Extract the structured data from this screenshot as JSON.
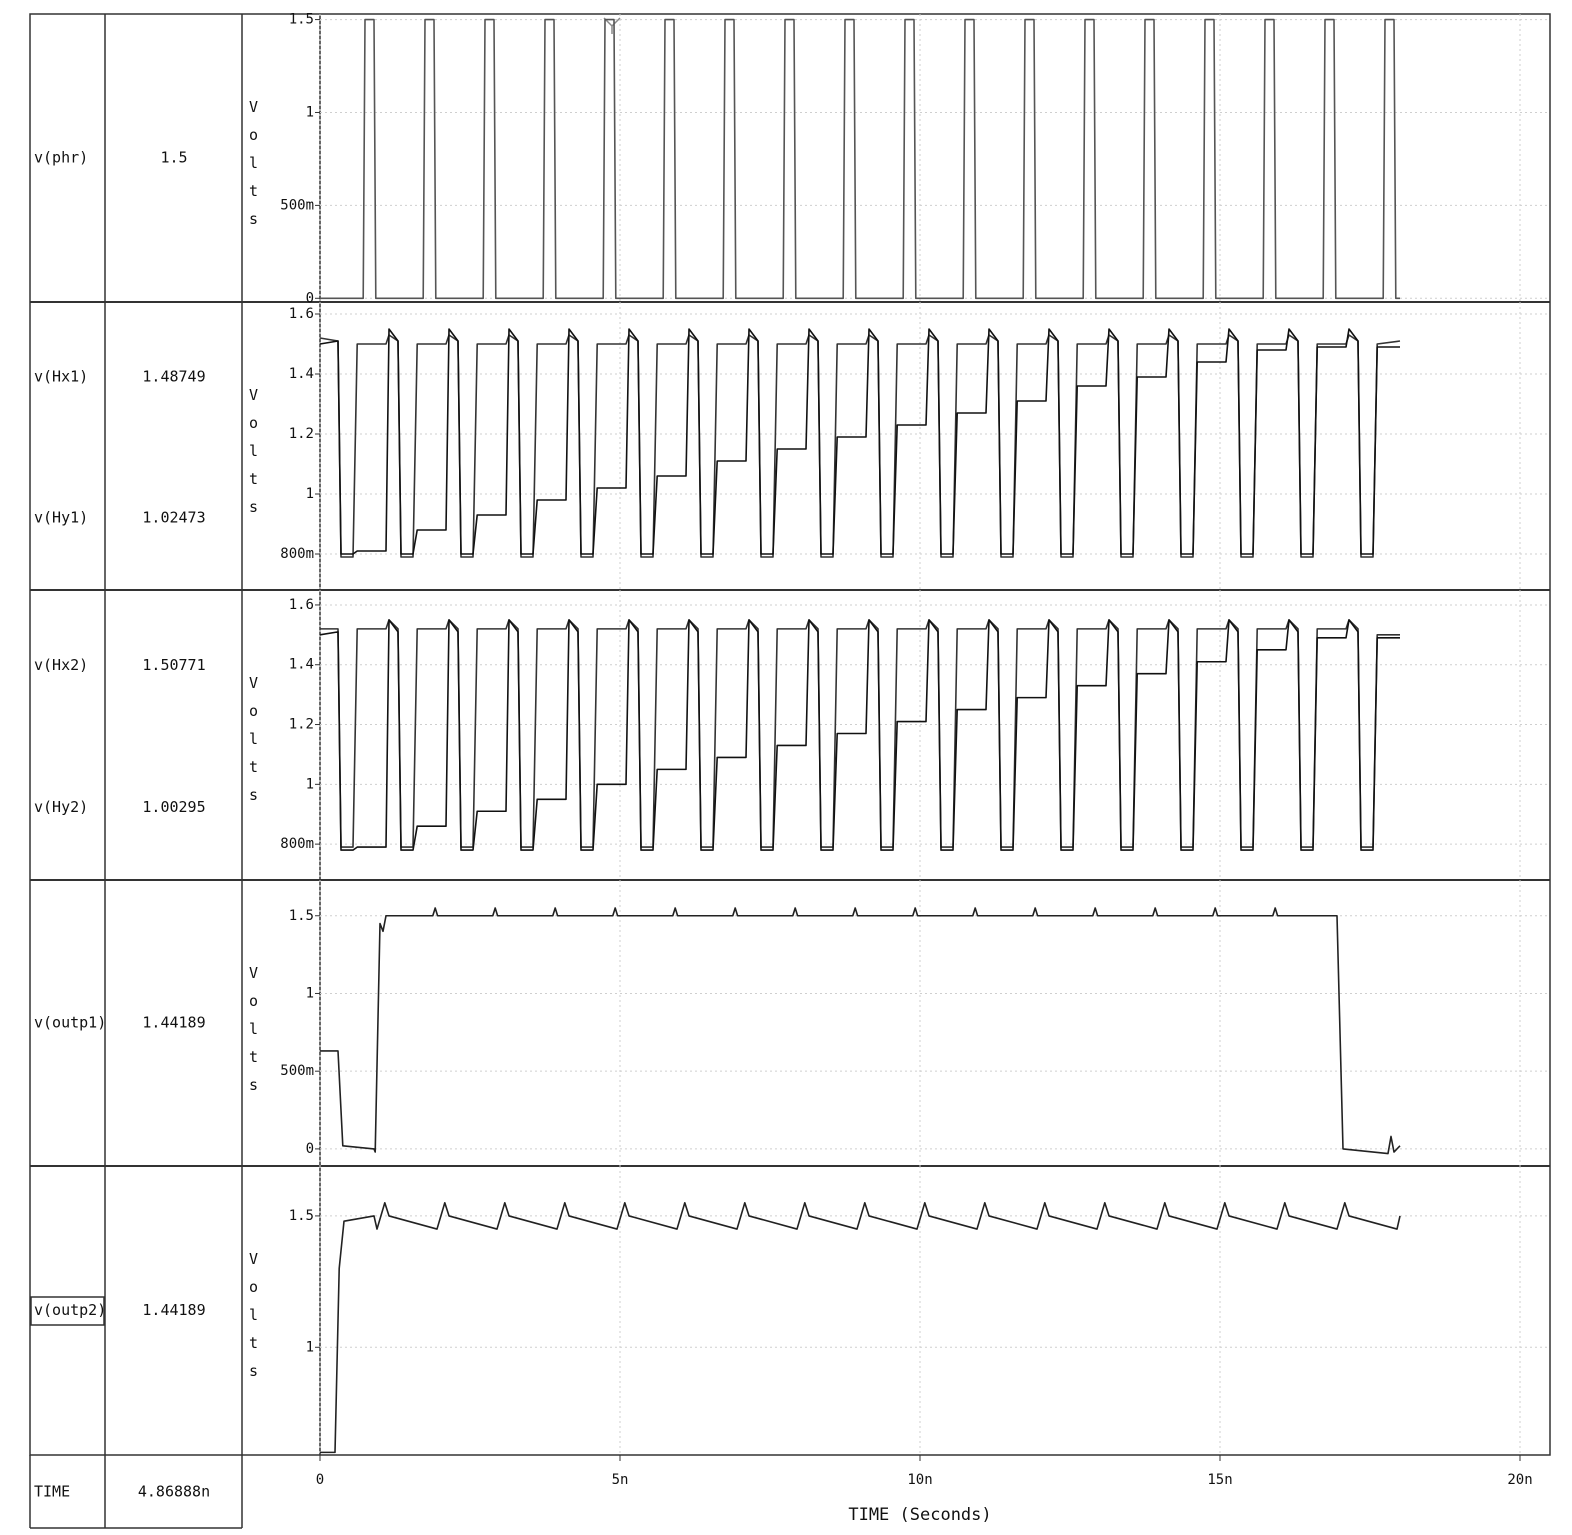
{
  "chart_data": [
    {
      "type": "line",
      "ylabel": "Volts",
      "xlim": [
        0,
        20
      ],
      "ylim": [
        -0.02,
        1.53
      ],
      "yticks": [
        0,
        {
          "value": 0.5,
          "label": "500m"
        },
        1,
        1.5
      ],
      "x": [
        0,
        0.72,
        0.75,
        0.9,
        0.93,
        1.72,
        1.75,
        1.9,
        1.93,
        2.72,
        2.75,
        2.9,
        2.93,
        3.72,
        3.75,
        3.9,
        3.93,
        4.72,
        4.75,
        4.9,
        4.93,
        5.72,
        5.75,
        5.9,
        5.93,
        6.72,
        6.75,
        6.9,
        6.93,
        7.72,
        7.75,
        7.9,
        7.93,
        8.72,
        8.75,
        8.9,
        8.93,
        9.72,
        9.75,
        9.9,
        9.93,
        10.72,
        10.75,
        10.9,
        10.93,
        11.72,
        11.75,
        11.9,
        11.93,
        12.72,
        12.75,
        12.9,
        12.93,
        13.72,
        13.75,
        13.9,
        13.93,
        14.72,
        14.75,
        14.9,
        14.93,
        15.72,
        15.75,
        15.9,
        15.93,
        16.72,
        16.75,
        16.9,
        16.93,
        17.72,
        17.75,
        17.9,
        17.93,
        18
      ],
      "series": [
        {
          "name": "v(phr)",
          "cursor": 1.5,
          "color": "#555555",
          "values": [
            0,
            0,
            1.5,
            1.5,
            0,
            0,
            1.5,
            1.5,
            0,
            0,
            1.5,
            1.5,
            0,
            0,
            1.5,
            1.5,
            0,
            0,
            1.5,
            1.5,
            0,
            0,
            1.5,
            1.5,
            0,
            0,
            1.5,
            1.5,
            0,
            0,
            1.5,
            1.5,
            0,
            0,
            1.5,
            1.5,
            0,
            0,
            1.5,
            1.5,
            0,
            0,
            1.5,
            1.5,
            0,
            0,
            1.5,
            1.5,
            0,
            0,
            1.5,
            1.5,
            0,
            0,
            1.5,
            1.5,
            0,
            0,
            1.5,
            1.5,
            0,
            0,
            1.5,
            1.5,
            0,
            0,
            1.5,
            1.5,
            0,
            0,
            1.5,
            1.5,
            0,
            0
          ]
        }
      ]
    },
    {
      "type": "line",
      "ylabel": "Volts",
      "xlim": [
        0,
        20
      ],
      "ylim": [
        0.68,
        1.64
      ],
      "yticks": [
        {
          "value": 0.8,
          "label": "800m"
        },
        1,
        1.2,
        1.4,
        1.6
      ],
      "x": [
        0,
        0.3,
        0.35,
        0.55,
        0.62,
        1.1,
        1.15,
        1.3,
        1.35,
        1.55,
        1.62,
        2.1,
        2.15,
        2.3,
        2.35,
        2.55,
        2.62,
        3.1,
        3.15,
        3.3,
        3.35,
        3.55,
        3.62,
        4.1,
        4.15,
        4.3,
        4.35,
        4.55,
        4.62,
        5.1,
        5.15,
        5.3,
        5.35,
        5.55,
        5.62,
        6.1,
        6.15,
        6.3,
        6.35,
        6.55,
        6.62,
        7.1,
        7.15,
        7.3,
        7.35,
        7.55,
        7.62,
        8.1,
        8.15,
        8.3,
        8.35,
        8.55,
        8.62,
        9.1,
        9.15,
        9.3,
        9.35,
        9.55,
        9.62,
        10.1,
        10.15,
        10.3,
        10.35,
        10.55,
        10.62,
        11.1,
        11.15,
        11.3,
        11.35,
        11.55,
        11.62,
        12.1,
        12.15,
        12.3,
        12.35,
        12.55,
        12.62,
        13.1,
        13.15,
        13.3,
        13.35,
        13.55,
        13.62,
        14.1,
        14.15,
        14.3,
        14.35,
        14.55,
        14.62,
        15.1,
        15.15,
        15.3,
        15.35,
        15.55,
        15.62,
        16.1,
        16.15,
        16.3,
        16.35,
        16.55,
        16.62,
        17.1,
        17.15,
        17.3,
        17.35,
        17.55,
        17.62,
        18
      ],
      "series": [
        {
          "name": "v(Hx1)",
          "cursor": 1.48749,
          "color": "#333333",
          "values": [
            1.52,
            1.51,
            0.79,
            0.79,
            1.5,
            1.5,
            1.53,
            1.51,
            0.79,
            0.79,
            1.5,
            1.5,
            1.53,
            1.51,
            0.79,
            0.79,
            1.5,
            1.5,
            1.53,
            1.51,
            0.79,
            0.79,
            1.5,
            1.5,
            1.53,
            1.51,
            0.79,
            0.79,
            1.5,
            1.5,
            1.53,
            1.51,
            0.79,
            0.79,
            1.5,
            1.5,
            1.53,
            1.51,
            0.79,
            0.79,
            1.5,
            1.5,
            1.53,
            1.51,
            0.79,
            0.79,
            1.5,
            1.5,
            1.53,
            1.51,
            0.79,
            0.79,
            1.5,
            1.5,
            1.53,
            1.51,
            0.79,
            0.79,
            1.5,
            1.5,
            1.53,
            1.51,
            0.79,
            0.79,
            1.5,
            1.5,
            1.53,
            1.51,
            0.79,
            0.79,
            1.5,
            1.5,
            1.53,
            1.51,
            0.79,
            0.79,
            1.5,
            1.5,
            1.53,
            1.51,
            0.79,
            0.79,
            1.5,
            1.5,
            1.53,
            1.51,
            0.79,
            0.79,
            1.5,
            1.5,
            1.53,
            1.51,
            0.79,
            0.79,
            1.5,
            1.5,
            1.53,
            1.51,
            0.79,
            0.79,
            1.5,
            1.5,
            1.53,
            1.51,
            0.79,
            0.79,
            1.5,
            1.51
          ]
        },
        {
          "name": "v(Hy1)",
          "cursor": 1.02473,
          "color": "#111111",
          "values": [
            1.5,
            1.51,
            0.8,
            0.8,
            0.81,
            0.81,
            1.55,
            1.51,
            0.8,
            0.8,
            0.88,
            0.88,
            1.55,
            1.51,
            0.8,
            0.8,
            0.93,
            0.93,
            1.55,
            1.51,
            0.8,
            0.8,
            0.98,
            0.98,
            1.55,
            1.51,
            0.8,
            0.8,
            1.02,
            1.02,
            1.55,
            1.51,
            0.8,
            0.8,
            1.06,
            1.06,
            1.55,
            1.51,
            0.8,
            0.8,
            1.11,
            1.11,
            1.55,
            1.51,
            0.8,
            0.8,
            1.15,
            1.15,
            1.55,
            1.51,
            0.8,
            0.8,
            1.19,
            1.19,
            1.55,
            1.51,
            0.8,
            0.8,
            1.23,
            1.23,
            1.55,
            1.51,
            0.8,
            0.8,
            1.27,
            1.27,
            1.55,
            1.51,
            0.8,
            0.8,
            1.31,
            1.31,
            1.55,
            1.51,
            0.8,
            0.8,
            1.36,
            1.36,
            1.55,
            1.51,
            0.8,
            0.8,
            1.39,
            1.39,
            1.55,
            1.51,
            0.8,
            0.8,
            1.44,
            1.44,
            1.55,
            1.51,
            0.8,
            0.8,
            1.48,
            1.48,
            1.55,
            1.51,
            0.8,
            0.8,
            1.49,
            1.49,
            1.55,
            1.51,
            0.8,
            0.8,
            1.49,
            1.49
          ]
        }
      ]
    },
    {
      "type": "line",
      "ylabel": "Volts",
      "xlim": [
        0,
        20
      ],
      "ylim": [
        0.68,
        1.65
      ],
      "yticks": [
        {
          "value": 0.8,
          "label": "800m"
        },
        1,
        1.2,
        1.4,
        1.6
      ],
      "x": [
        0,
        0.3,
        0.35,
        0.55,
        0.62,
        1.1,
        1.15,
        1.3,
        1.35,
        1.55,
        1.62,
        2.1,
        2.15,
        2.3,
        2.35,
        2.55,
        2.62,
        3.1,
        3.15,
        3.3,
        3.35,
        3.55,
        3.62,
        4.1,
        4.15,
        4.3,
        4.35,
        4.55,
        4.62,
        5.1,
        5.15,
        5.3,
        5.35,
        5.55,
        5.62,
        6.1,
        6.15,
        6.3,
        6.35,
        6.55,
        6.62,
        7.1,
        7.15,
        7.3,
        7.35,
        7.55,
        7.62,
        8.1,
        8.15,
        8.3,
        8.35,
        8.55,
        8.62,
        9.1,
        9.15,
        9.3,
        9.35,
        9.55,
        9.62,
        10.1,
        10.15,
        10.3,
        10.35,
        10.55,
        10.62,
        11.1,
        11.15,
        11.3,
        11.35,
        11.55,
        11.62,
        12.1,
        12.15,
        12.3,
        12.35,
        12.55,
        12.62,
        13.1,
        13.15,
        13.3,
        13.35,
        13.55,
        13.62,
        14.1,
        14.15,
        14.3,
        14.35,
        14.55,
        14.62,
        15.1,
        15.15,
        15.3,
        15.35,
        15.55,
        15.62,
        16.1,
        16.15,
        16.3,
        16.35,
        16.55,
        16.62,
        17.1,
        17.15,
        17.3,
        17.35,
        17.55,
        17.62,
        18
      ],
      "series": [
        {
          "name": "v(Hx2)",
          "cursor": 1.50771,
          "color": "#333333",
          "values": [
            1.52,
            1.52,
            0.79,
            0.79,
            1.52,
            1.52,
            1.55,
            1.52,
            0.79,
            0.79,
            1.52,
            1.52,
            1.55,
            1.52,
            0.79,
            0.79,
            1.52,
            1.52,
            1.55,
            1.52,
            0.79,
            0.79,
            1.52,
            1.52,
            1.55,
            1.52,
            0.79,
            0.79,
            1.52,
            1.52,
            1.55,
            1.52,
            0.79,
            0.79,
            1.52,
            1.52,
            1.55,
            1.52,
            0.79,
            0.79,
            1.52,
            1.52,
            1.55,
            1.52,
            0.79,
            0.79,
            1.52,
            1.52,
            1.55,
            1.52,
            0.79,
            0.79,
            1.52,
            1.52,
            1.55,
            1.52,
            0.79,
            0.79,
            1.52,
            1.52,
            1.55,
            1.52,
            0.79,
            0.79,
            1.52,
            1.52,
            1.55,
            1.52,
            0.79,
            0.79,
            1.52,
            1.52,
            1.55,
            1.52,
            0.79,
            0.79,
            1.52,
            1.52,
            1.55,
            1.52,
            0.79,
            0.79,
            1.52,
            1.52,
            1.55,
            1.52,
            0.79,
            0.79,
            1.52,
            1.52,
            1.55,
            1.52,
            0.79,
            0.79,
            1.52,
            1.52,
            1.55,
            1.52,
            0.79,
            0.79,
            1.52,
            1.52,
            1.55,
            1.52,
            0.79,
            0.79,
            1.5,
            1.5
          ]
        },
        {
          "name": "v(Hy2)",
          "cursor": 1.00295,
          "color": "#111111",
          "values": [
            1.5,
            1.51,
            0.78,
            0.78,
            0.79,
            0.79,
            1.55,
            1.51,
            0.78,
            0.78,
            0.86,
            0.86,
            1.55,
            1.51,
            0.78,
            0.78,
            0.91,
            0.91,
            1.55,
            1.51,
            0.78,
            0.78,
            0.95,
            0.95,
            1.55,
            1.51,
            0.78,
            0.78,
            1.0,
            1.0,
            1.55,
            1.51,
            0.78,
            0.78,
            1.05,
            1.05,
            1.55,
            1.51,
            0.78,
            0.78,
            1.09,
            1.09,
            1.55,
            1.51,
            0.78,
            0.78,
            1.13,
            1.13,
            1.55,
            1.51,
            0.78,
            0.78,
            1.17,
            1.17,
            1.55,
            1.51,
            0.78,
            0.78,
            1.21,
            1.21,
            1.55,
            1.51,
            0.78,
            0.78,
            1.25,
            1.25,
            1.55,
            1.51,
            0.78,
            0.78,
            1.29,
            1.29,
            1.55,
            1.51,
            0.78,
            0.78,
            1.33,
            1.33,
            1.55,
            1.51,
            0.78,
            0.78,
            1.37,
            1.37,
            1.55,
            1.51,
            0.78,
            0.78,
            1.41,
            1.41,
            1.55,
            1.51,
            0.78,
            0.78,
            1.45,
            1.45,
            1.55,
            1.51,
            0.78,
            0.78,
            1.49,
            1.49,
            1.55,
            1.51,
            0.78,
            0.78,
            1.49,
            1.49
          ]
        }
      ]
    },
    {
      "type": "line",
      "ylabel": "Volts",
      "xlim": [
        0,
        20
      ],
      "ylim": [
        -0.11,
        1.73
      ],
      "yticks": [
        0,
        {
          "value": 0.5,
          "label": "500m"
        },
        1,
        1.5
      ],
      "x": [
        0,
        0.3,
        0.38,
        0.9,
        0.92,
        1,
        1.05,
        1.1,
        1.88,
        1.92,
        1.96,
        2.88,
        2.92,
        2.96,
        3.88,
        3.92,
        3.96,
        4.88,
        4.92,
        4.96,
        5.88,
        5.92,
        5.96,
        6.88,
        6.92,
        6.96,
        7.88,
        7.92,
        7.96,
        8.88,
        8.92,
        8.96,
        9.88,
        9.92,
        9.96,
        10.88,
        10.92,
        10.96,
        11.88,
        11.92,
        11.96,
        12.88,
        12.92,
        12.96,
        13.88,
        13.92,
        13.96,
        14.88,
        14.92,
        14.96,
        15.88,
        15.92,
        15.96,
        16.95,
        17.05,
        17.8,
        17.85,
        17.9,
        18
      ],
      "series": [
        {
          "name": "v(outp1)",
          "cursor": 1.44189,
          "color": "#222222",
          "values": [
            0.63,
            0.63,
            0.02,
            0,
            -0.02,
            1.45,
            1.4,
            1.5,
            1.5,
            1.55,
            1.5,
            1.5,
            1.55,
            1.5,
            1.5,
            1.55,
            1.5,
            1.5,
            1.55,
            1.5,
            1.5,
            1.55,
            1.5,
            1.5,
            1.55,
            1.5,
            1.5,
            1.55,
            1.5,
            1.5,
            1.55,
            1.5,
            1.5,
            1.55,
            1.5,
            1.5,
            1.55,
            1.5,
            1.5,
            1.55,
            1.5,
            1.5,
            1.55,
            1.5,
            1.5,
            1.55,
            1.5,
            1.5,
            1.55,
            1.5,
            1.5,
            1.55,
            1.5,
            1.5,
            0,
            -0.03,
            0.08,
            -0.02,
            0.02
          ]
        }
      ]
    },
    {
      "type": "line",
      "ylabel": "Volts",
      "xlim": [
        0,
        20
      ],
      "ylim": [
        0.59,
        1.69
      ],
      "yticks": [
        1,
        1.5
      ],
      "xticks": [
        0,
        {
          "value": 5,
          "label": "5n"
        },
        {
          "value": 10,
          "label": "10n"
        },
        {
          "value": 15,
          "label": "15n"
        },
        {
          "value": 20,
          "label": "20n"
        }
      ],
      "xlabel": "TIME (Seconds)",
      "x": [
        0,
        0.25,
        0.32,
        0.4,
        0.9,
        0.95,
        1.08,
        1.15,
        1.95,
        2.08,
        2.15,
        2.95,
        3.08,
        3.15,
        3.95,
        4.08,
        4.15,
        4.95,
        5.08,
        5.15,
        5.95,
        6.08,
        6.15,
        6.95,
        7.08,
        7.15,
        7.95,
        8.08,
        8.15,
        8.95,
        9.08,
        9.15,
        9.95,
        10.08,
        10.15,
        10.95,
        11.08,
        11.15,
        11.95,
        12.08,
        12.15,
        12.95,
        13.08,
        13.15,
        13.95,
        14.08,
        14.15,
        14.95,
        15.08,
        15.15,
        15.95,
        16.08,
        16.15,
        16.95,
        17.08,
        17.15,
        17.95,
        18
      ],
      "series": [
        {
          "name": "v(outp2)",
          "cursor": 1.44189,
          "color": "#222222",
          "values": [
            0.6,
            0.6,
            1.3,
            1.48,
            1.5,
            1.45,
            1.55,
            1.5,
            1.45,
            1.55,
            1.5,
            1.45,
            1.55,
            1.5,
            1.45,
            1.55,
            1.5,
            1.45,
            1.55,
            1.5,
            1.45,
            1.55,
            1.5,
            1.45,
            1.55,
            1.5,
            1.45,
            1.55,
            1.5,
            1.45,
            1.55,
            1.5,
            1.45,
            1.55,
            1.5,
            1.45,
            1.55,
            1.5,
            1.45,
            1.55,
            1.5,
            1.45,
            1.55,
            1.5,
            1.45,
            1.55,
            1.5,
            1.45,
            1.55,
            1.5,
            1.45,
            1.55,
            1.5,
            1.45,
            1.55,
            1.5,
            1.45,
            1.5
          ]
        }
      ]
    }
  ],
  "cursor": {
    "name": "TIME",
    "value": "4.86888n"
  }
}
